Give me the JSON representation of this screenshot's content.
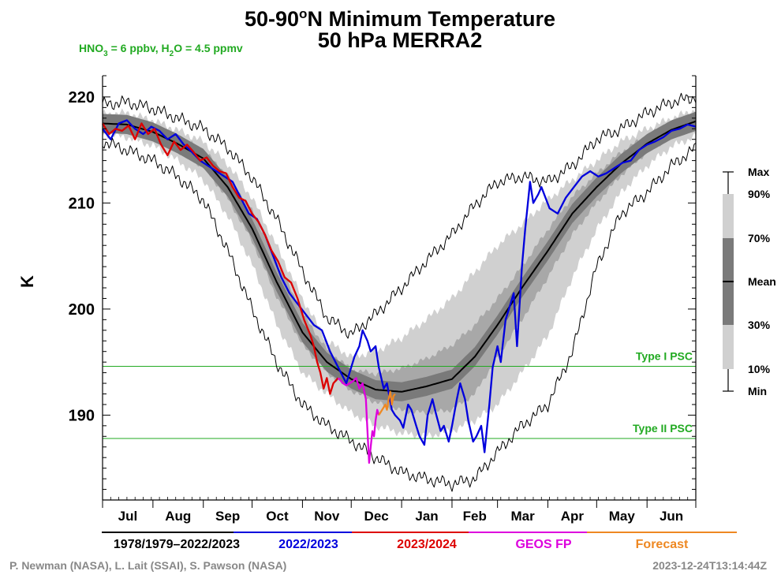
{
  "chart_data": {
    "type": "line",
    "title_main": "50-90",
    "title_sup": "o",
    "title_rest": "N Minimum Temperature",
    "subtitle": "50 hPa   MERRA2",
    "chem_label": {
      "hno3": "HNO",
      "hno3_sub": "3",
      "hno3_val": " = 6 ppbv, H",
      "h2o_sub": "2",
      "h2o_val": "O = 4.5 ppmv",
      "color": "#22aa22"
    },
    "ylabel": "K",
    "ylim": [
      182,
      222
    ],
    "yticks": [
      190,
      200,
      210,
      220
    ],
    "xlim": [
      0,
      365
    ],
    "month_labels": [
      {
        "label": "Jul",
        "mid": 15.5
      },
      {
        "label": "Aug",
        "mid": 46.5
      },
      {
        "label": "Sep",
        "mid": 77
      },
      {
        "label": "Oct",
        "mid": 107.5
      },
      {
        "label": "Nov",
        "mid": 138
      },
      {
        "label": "Dec",
        "mid": 168.5
      },
      {
        "label": "Jan",
        "mid": 199.5
      },
      {
        "label": "Feb",
        "mid": 229
      },
      {
        "label": "Mar",
        "mid": 258.5
      },
      {
        "label": "Apr",
        "mid": 289
      },
      {
        "label": "May",
        "mid": 319.5
      },
      {
        "label": "Jun",
        "mid": 350
      }
    ],
    "month_bounds": [
      0,
      31,
      62,
      92,
      123,
      153,
      184,
      215,
      243,
      274,
      304,
      335,
      365
    ],
    "psc_lines": [
      {
        "name": "Type I PSC",
        "value": 194.6,
        "color": "#22aa22"
      },
      {
        "name": "Type II PSC",
        "value": 187.8,
        "color": "#22aa22"
      }
    ],
    "climatology": {
      "x": [
        0,
        15,
        31,
        46,
        62,
        77,
        92,
        107,
        123,
        138,
        153,
        168,
        184,
        199,
        215,
        229,
        243,
        258,
        274,
        289,
        304,
        319,
        335,
        350,
        365
      ],
      "max": [
        219.3,
        219.5,
        218.9,
        218.0,
        217.0,
        215.2,
        212.4,
        208.5,
        203.6,
        199.2,
        197.6,
        199.5,
        202.0,
        204.5,
        207.0,
        209.8,
        212.0,
        212.5,
        212.0,
        213.5,
        216.0,
        217.0,
        218.5,
        219.5,
        220.0
      ],
      "p90": [
        218.4,
        218.5,
        217.8,
        216.9,
        215.8,
        213.7,
        210.5,
        206.0,
        201.0,
        197.0,
        195.5,
        196.0,
        197.3,
        199.0,
        201.0,
        203.5,
        206.0,
        208.0,
        210.3,
        212.2,
        214.0,
        215.8,
        217.0,
        218.0,
        218.8
      ],
      "p70": [
        218.0,
        217.9,
        217.3,
        216.3,
        215.0,
        212.6,
        209.3,
        204.6,
        199.6,
        196.2,
        194.3,
        193.9,
        194.4,
        195.3,
        196.6,
        198.5,
        201.0,
        204.0,
        207.5,
        210.6,
        212.8,
        214.8,
        216.4,
        217.5,
        218.3
      ],
      "mean": [
        217.5,
        217.4,
        216.7,
        215.6,
        214.2,
        211.5,
        207.6,
        202.6,
        197.8,
        195.0,
        193.4,
        192.4,
        192.2,
        192.7,
        193.4,
        195.5,
        198.5,
        202.0,
        205.5,
        209.0,
        211.5,
        213.7,
        215.6,
        216.9,
        217.7
      ],
      "p30": [
        217.0,
        216.8,
        216.1,
        214.9,
        213.4,
        210.4,
        206.4,
        201.2,
        196.6,
        194.0,
        192.3,
        191.2,
        190.4,
        190.2,
        190.5,
        192.0,
        195.5,
        199.0,
        203.0,
        207.0,
        210.0,
        212.6,
        214.8,
        216.3,
        217.1
      ],
      "p10": [
        216.5,
        216.2,
        215.4,
        214.0,
        212.2,
        208.8,
        204.2,
        198.6,
        194.0,
        192.0,
        190.2,
        189.0,
        188.3,
        188.0,
        188.5,
        189.5,
        191.0,
        194.0,
        197.5,
        203.0,
        207.5,
        211.0,
        213.5,
        215.3,
        216.3
      ],
      "min": [
        215.8,
        215.0,
        214.0,
        212.5,
        210.3,
        205.5,
        200.0,
        195.0,
        191.0,
        189.0,
        187.6,
        186.0,
        184.6,
        184.0,
        183.5,
        184.0,
        186.5,
        189.0,
        191.0,
        196.0,
        204.0,
        209.0,
        211.0,
        213.5,
        215.2
      ]
    },
    "series": [
      {
        "name": "2022/2023",
        "color": "#0000dd",
        "x": [
          0,
          5,
          10,
          15,
          20,
          25,
          30,
          35,
          40,
          45,
          50,
          55,
          60,
          65,
          70,
          75,
          80,
          85,
          90,
          95,
          100,
          105,
          110,
          115,
          120,
          125,
          130,
          135,
          140,
          145,
          150,
          155,
          158,
          160,
          163,
          165,
          168,
          170,
          173,
          175,
          178,
          180,
          183,
          185,
          188,
          190,
          193,
          195,
          198,
          200,
          203,
          205,
          208,
          210,
          213,
          215,
          218,
          220,
          223,
          225,
          228,
          230,
          233,
          235,
          238,
          240,
          243,
          245,
          248,
          250,
          253,
          255,
          258,
          260,
          263,
          265,
          268,
          270,
          275,
          280,
          285,
          290,
          295,
          300,
          305,
          310,
          315,
          320,
          325,
          330,
          335,
          340,
          345,
          350,
          355,
          360,
          365
        ],
        "y": [
          217.0,
          216.0,
          217.5,
          217.8,
          217.0,
          216.5,
          217.2,
          216.8,
          216.0,
          216.5,
          215.5,
          214.8,
          214.0,
          213.5,
          213.0,
          212.5,
          212.0,
          210.5,
          209.0,
          208.5,
          207.0,
          205.0,
          203.0,
          201.5,
          200.5,
          199.5,
          198.5,
          198.0,
          196.0,
          194.5,
          193.0,
          195.5,
          196.5,
          198.0,
          197.0,
          196.0,
          196.5,
          194.5,
          192.5,
          193.0,
          190.5,
          190.0,
          189.5,
          188.8,
          191.0,
          190.5,
          189.0,
          188.0,
          187.2,
          190.0,
          191.5,
          190.2,
          188.5,
          189.0,
          187.5,
          189.0,
          191.5,
          193.0,
          191.5,
          189.5,
          187.5,
          188.0,
          189.0,
          186.5,
          191.0,
          194.5,
          196.5,
          195.0,
          199.0,
          200.0,
          201.5,
          196.5,
          204.0,
          207.5,
          212.0,
          210.0,
          210.8,
          211.5,
          209.5,
          209.0,
          210.5,
          211.5,
          212.5,
          213.0,
          212.5,
          212.8,
          213.3,
          213.8,
          214.0,
          215.0,
          215.5,
          215.8,
          216.2,
          216.8,
          217.0,
          217.4,
          217.2
        ]
      },
      {
        "name": "2023/2024",
        "color": "#dd0000",
        "x": [
          0,
          4,
          8,
          12,
          16,
          20,
          24,
          28,
          32,
          36,
          40,
          44,
          48,
          52,
          56,
          60,
          64,
          68,
          72,
          76,
          80,
          84,
          88,
          92,
          96,
          100,
          104,
          108,
          112,
          116,
          120,
          124,
          128,
          130,
          132,
          134,
          136,
          138,
          140,
          142,
          145
        ],
        "y": [
          217.5,
          216.5,
          217.0,
          216.8,
          217.3,
          216.0,
          217.5,
          216.5,
          217.0,
          215.5,
          214.5,
          215.8,
          215.0,
          215.5,
          214.8,
          214.0,
          214.3,
          213.5,
          213.0,
          212.8,
          211.5,
          210.5,
          210.2,
          209.0,
          208.2,
          207.0,
          205.5,
          204.5,
          203.0,
          202.5,
          201.0,
          199.0,
          197.5,
          196.5,
          195.0,
          194.0,
          192.5,
          193.5,
          192.0,
          193.0,
          193.5
        ]
      },
      {
        "name": "GEOS FP",
        "color": "#dd00dd",
        "x": [
          145,
          148,
          150,
          152,
          154,
          156,
          158,
          160,
          162,
          163,
          164,
          165,
          166,
          167,
          168,
          169,
          170
        ],
        "y": [
          193.5,
          193.0,
          192.8,
          193.0,
          193.2,
          193.5,
          192.5,
          193.0,
          191.5,
          188.5,
          185.5,
          187.0,
          188.5,
          188.0,
          189.5,
          190.5,
          190.0
        ]
      },
      {
        "name": "Forecast",
        "color": "#ee8822",
        "x": [
          170,
          172,
          174,
          175,
          176,
          177,
          178,
          179,
          180
        ],
        "y": [
          190.0,
          190.5,
          191.0,
          190.5,
          191.5,
          192.2,
          191.0,
          191.8,
          192.0
        ]
      }
    ],
    "legend_bottom": [
      {
        "label": "1978/1979–2022/2023",
        "color": "#000000"
      },
      {
        "label": "2022/2023",
        "color": "#0000dd"
      },
      {
        "label": "2023/2024",
        "color": "#dd0000"
      },
      {
        "label": "GEOS FP",
        "color": "#dd00dd"
      },
      {
        "label": "Forecast",
        "color": "#ee8822"
      }
    ],
    "legend_side": {
      "labels": [
        "Max",
        "90%",
        "70%",
        "Mean",
        "30%",
        "10%",
        "Min"
      ]
    },
    "band_colors": {
      "outer": "#d0d0d0",
      "mid": "#a8a8a8",
      "inner": "#7a7a7a",
      "mean": "#000000",
      "extreme": "#000000"
    },
    "credit_left": "P. Newman (NASA), L. Lait (SSAI), S. Pawson (NASA)",
    "credit_right": "2023-12-24T13:14:44Z"
  }
}
